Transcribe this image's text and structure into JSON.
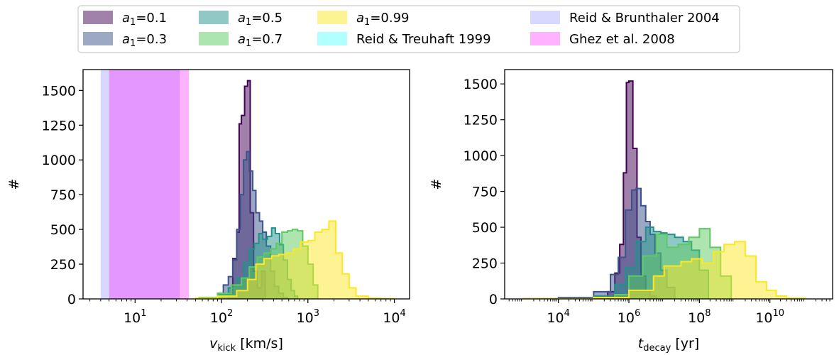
{
  "legend": {
    "placement": "top-center",
    "entries": [
      {
        "sym": "a",
        "sub": "1",
        "suffix": "=0.1",
        "color": "#440154",
        "alpha": 0.5
      },
      {
        "sym": "a",
        "sub": "1",
        "suffix": "=0.3",
        "color": "#3b528b",
        "alpha": 0.5
      },
      {
        "sym": "a",
        "sub": "1",
        "suffix": "=0.5",
        "color": "#21918c",
        "alpha": 0.5
      },
      {
        "sym": "a",
        "sub": "1",
        "suffix": "=0.7",
        "color": "#5ec962",
        "alpha": 0.5
      },
      {
        "sym": "a",
        "sub": "1",
        "suffix": "=0.99",
        "color": "#fde725",
        "alpha": 0.5
      },
      {
        "sym": "",
        "sub": "",
        "suffix": "Reid & Treuhaft 1999",
        "color": "#00ffff",
        "alpha": 0.3
      },
      {
        "sym": "",
        "sub": "",
        "suffix": "Reid & Brunthaler 2004",
        "color": "#7f7fff",
        "alpha": 0.3
      },
      {
        "sym": "",
        "sub": "",
        "suffix": "Ghez et al. 2008",
        "color": "#ff00ff",
        "alpha": 0.3
      }
    ]
  },
  "chart_data": [
    {
      "type": "histogram",
      "xscale": "log",
      "xlim": [
        2.5,
        15000
      ],
      "ylim": [
        0,
        1650
      ],
      "xlabel_sym": "v",
      "xlabel_sub": "kick",
      "xlabel_unit": " [km/s]",
      "ylabel": "#",
      "xticks": [
        {
          "val": 10,
          "base": "10",
          "exp": "1"
        },
        {
          "val": 100,
          "base": "10",
          "exp": "2"
        },
        {
          "val": 1000,
          "base": "10",
          "exp": "3"
        },
        {
          "val": 10000,
          "base": "10",
          "exp": "4"
        }
      ],
      "yticks": [
        0,
        250,
        500,
        750,
        1000,
        1250,
        1500
      ],
      "bands": [
        {
          "name": "Reid & Brunthaler 2004",
          "x0": 4,
          "x1": 33,
          "color": "#7f7fff",
          "alpha": 0.3
        },
        {
          "name": "Ghez et al. 2008",
          "x0": 5,
          "x1": 42,
          "color": "#ff00ff",
          "alpha": 0.3
        }
      ],
      "series": [
        {
          "name": "a1=0.1",
          "color": "#440154",
          "x": [
            120,
            135,
            150,
            160,
            170,
            185,
            200,
            215,
            235,
            260,
            290,
            320
          ],
          "y": [
            40,
            290,
            480,
            1260,
            1320,
            1530,
            1570,
            620,
            200,
            80,
            200,
            0
          ]
        },
        {
          "name": "a1=0.3",
          "color": "#3b528b",
          "x": [
            65,
            90,
            105,
            120,
            135,
            150,
            165,
            180,
            195,
            210,
            230,
            250,
            275,
            300,
            330,
            370,
            410,
            460,
            520,
            580
          ],
          "y": [
            10,
            40,
            100,
            160,
            280,
            500,
            750,
            1000,
            1060,
            920,
            780,
            620,
            560,
            480,
            380,
            200,
            90,
            40,
            10,
            0
          ]
        },
        {
          "name": "a1=0.5",
          "color": "#21918c",
          "x": [
            60,
            90,
            120,
            150,
            180,
            210,
            240,
            270,
            300,
            340,
            380,
            420,
            470,
            520,
            580,
            640,
            700,
            760
          ],
          "y": [
            10,
            30,
            80,
            150,
            260,
            360,
            400,
            470,
            430,
            450,
            510,
            470,
            390,
            280,
            140,
            60,
            20,
            0
          ]
        },
        {
          "name": "a1=0.7",
          "color": "#5ec962",
          "x": [
            55,
            90,
            130,
            170,
            210,
            260,
            310,
            370,
            430,
            500,
            580,
            660,
            760,
            870,
            1000,
            1150,
            1300
          ],
          "y": [
            10,
            40,
            100,
            150,
            230,
            300,
            330,
            360,
            400,
            480,
            490,
            500,
            490,
            380,
            250,
            100,
            0
          ]
        },
        {
          "name": "a1=0.99",
          "color": "#fde725",
          "x": [
            50,
            90,
            150,
            200,
            250,
            310,
            380,
            460,
            560,
            680,
            820,
            1000,
            1200,
            1450,
            1750,
            2100,
            2500,
            3000,
            3600,
            5000,
            7000,
            10000
          ],
          "y": [
            5,
            20,
            60,
            140,
            250,
            290,
            310,
            320,
            330,
            360,
            410,
            420,
            480,
            500,
            560,
            330,
            180,
            80,
            20,
            5,
            2,
            0
          ]
        }
      ]
    },
    {
      "type": "histogram",
      "xscale": "log",
      "xlim": [
        300,
        600000000000
      ],
      "ylim": [
        0,
        1600
      ],
      "xlabel_sym": "t",
      "xlabel_sub": "decay",
      "xlabel_unit": " [yr]",
      "ylabel": "#",
      "xticks": [
        {
          "val": 10000,
          "base": "10",
          "exp": "4"
        },
        {
          "val": 1000000,
          "base": "10",
          "exp": "6"
        },
        {
          "val": 100000000,
          "base": "10",
          "exp": "8"
        },
        {
          "val": 10000000000,
          "base": "10",
          "exp": "10"
        }
      ],
      "yticks": [
        0,
        250,
        500,
        750,
        1000,
        1250,
        1500
      ],
      "bands": [],
      "series": [
        {
          "name": "a1=0.1",
          "color": "#440154",
          "x": [
            250000,
            400000,
            550000,
            700000,
            850000,
            1000000,
            1300000,
            1700000,
            2200000,
            3000000,
            4000000,
            6000000
          ],
          "y": [
            50,
            180,
            380,
            880,
            1510,
            1520,
            1050,
            430,
            160,
            60,
            20,
            0
          ]
        },
        {
          "name": "a1=0.3",
          "color": "#3b528b",
          "x": [
            1000,
            10000,
            100000,
            300000,
            500000,
            800000,
            1200000,
            1600000,
            2200000,
            3000000,
            4000000,
            5500000,
            8000000,
            12000000,
            20000000
          ],
          "y": [
            2,
            10,
            50,
            170,
            290,
            620,
            760,
            770,
            650,
            540,
            450,
            320,
            200,
            80,
            0
          ]
        },
        {
          "name": "a1=0.5",
          "color": "#21918c",
          "x": [
            100000,
            400000,
            800000,
            1600000,
            3000000,
            5000000,
            8000000,
            12000000,
            20000000,
            35000000,
            60000000,
            100000000,
            180000000
          ],
          "y": [
            20,
            100,
            220,
            400,
            500,
            470,
            460,
            450,
            430,
            400,
            340,
            200,
            0
          ]
        },
        {
          "name": "a1=0.7",
          "color": "#5ec962",
          "x": [
            400000,
            1000000,
            2500000,
            6000000,
            12000000,
            25000000,
            50000000,
            100000000,
            200000000,
            400000000,
            800000000
          ],
          "y": [
            30,
            160,
            300,
            450,
            360,
            380,
            430,
            490,
            360,
            160,
            0
          ]
        },
        {
          "name": "a1=0.99",
          "color": "#fde725",
          "x": [
            1000,
            100000,
            1000000,
            5000000,
            10000000,
            30000000,
            60000000,
            120000000,
            250000000,
            500000000,
            1000000000,
            2000000000,
            4000000000,
            8000000000,
            15000000000,
            30000000000,
            100000000000
          ],
          "y": [
            2,
            10,
            60,
            160,
            230,
            260,
            280,
            250,
            330,
            380,
            400,
            300,
            120,
            60,
            20,
            5,
            0
          ]
        }
      ]
    }
  ]
}
